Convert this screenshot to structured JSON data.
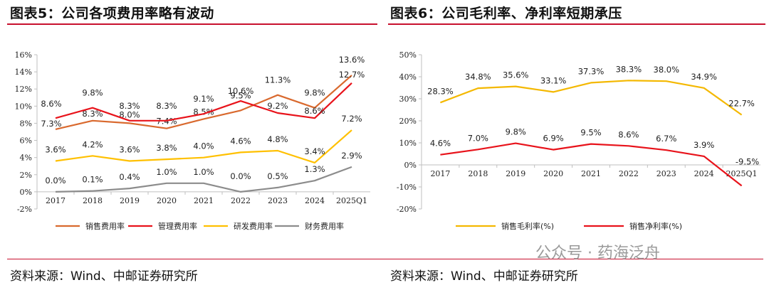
{
  "left": {
    "title": "图表5：公司各项费用率略有波动",
    "source": "资料来源：Wind、中邮证券研究所"
  },
  "right": {
    "title": "图表6：公司毛利率、净利率短期承压",
    "source": "资料来源：Wind、中邮证券研究所"
  },
  "watermark": "公众号 · 药海泛舟",
  "colors": {
    "rule": "#c8102e",
    "sales": "#d9692e",
    "admin": "#e8131b",
    "rd": "#ffc000",
    "fin": "#8c8c8c",
    "gross": "#f4b800",
    "net": "#e8131b"
  },
  "chart_data": [
    {
      "type": "line",
      "categories": [
        "2017",
        "2018",
        "2019",
        "2020",
        "2021",
        "2022",
        "2023",
        "2024",
        "2025Q1"
      ],
      "ylim": [
        -2,
        16
      ],
      "yticks": [
        "-2%",
        "0%",
        "2%",
        "4%",
        "6%",
        "8%",
        "10%",
        "12%",
        "14%",
        "16%"
      ],
      "legend_position": "bottom",
      "series": [
        {
          "name": "销售费用率",
          "values": [
            7.3,
            8.3,
            8.0,
            7.4,
            8.5,
            9.5,
            11.3,
            9.8,
            13.6
          ],
          "labels": [
            "7.3%",
            "8.3%",
            "8.0%",
            "7.4%",
            "8.5%",
            "9.5%",
            "11.3%",
            "9.8%",
            "13.6%"
          ]
        },
        {
          "name": "管理费用率",
          "values": [
            8.6,
            9.8,
            8.3,
            8.3,
            9.1,
            10.6,
            9.2,
            8.6,
            12.7
          ],
          "labels": [
            "8.6%",
            "9.8%",
            "8.3%",
            "8.3%",
            "9.1%",
            "10.6%",
            "9.2%",
            "8.6%",
            "12.7%"
          ]
        },
        {
          "name": "研发费用率",
          "values": [
            3.6,
            4.2,
            3.6,
            3.8,
            4.0,
            4.6,
            4.8,
            3.4,
            7.2
          ],
          "labels": [
            "3.6%",
            "4.2%",
            "3.6%",
            "3.8%",
            "4.0%",
            "4.6%",
            "4.8%",
            "3.4%",
            "7.2%"
          ]
        },
        {
          "name": "财务费用率",
          "values": [
            0.0,
            0.1,
            0.4,
            1.0,
            1.0,
            0.0,
            0.5,
            1.3,
            2.9
          ],
          "labels": [
            "0.0%",
            "0.1%",
            "0.4%",
            "1.0%",
            "1.0%",
            "0.0%",
            "0.5%",
            "1.3%",
            "2.9%"
          ]
        }
      ]
    },
    {
      "type": "line",
      "categories": [
        "2017",
        "2018",
        "2019",
        "2020",
        "2021",
        "2022",
        "2023",
        "2024",
        "2025Q1"
      ],
      "ylim": [
        -20,
        50
      ],
      "yticks": [
        "-20%",
        "-10%",
        "0%",
        "10%",
        "20%",
        "30%",
        "40%",
        "50%"
      ],
      "legend_position": "bottom",
      "series": [
        {
          "name": "销售毛利率(%)",
          "values": [
            28.3,
            34.8,
            35.6,
            33.1,
            37.3,
            38.3,
            38.0,
            34.9,
            22.7
          ],
          "labels": [
            "28.3%",
            "34.8%",
            "35.6%",
            "33.1%",
            "37.3%",
            "38.3%",
            "38.0%",
            "34.9%",
            "22.7%"
          ]
        },
        {
          "name": "销售净利率(%)",
          "values": [
            4.6,
            7.0,
            9.8,
            6.9,
            9.5,
            8.6,
            6.7,
            3.9,
            -9.5
          ],
          "labels": [
            "4.6%",
            "7.0%",
            "9.8%",
            "6.9%",
            "9.5%",
            "8.6%",
            "6.7%",
            "3.9%",
            "-9.5%"
          ]
        }
      ]
    }
  ]
}
